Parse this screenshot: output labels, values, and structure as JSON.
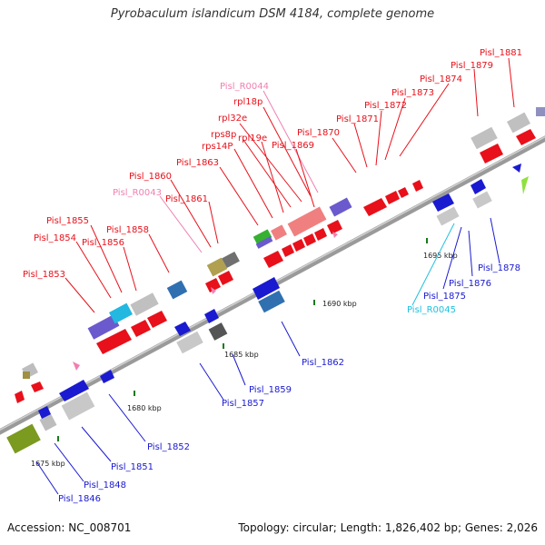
{
  "title": "Pyrobaculum islandicum DSM 4184, complete genome",
  "footer": {
    "accession": "Accession: NC_008701",
    "summary": "Topology: circular; Length: 1,826,402 bp; Genes: 2,026"
  },
  "colors": {
    "top_label": "#e8101a",
    "bottom_label": "#1a1ad0",
    "rna_label": "#f080b0",
    "rrna_label": "#20c0e0",
    "backbone": "#9a9a9a"
  },
  "ticks": [
    "1675 kbp",
    "1680 kbp",
    "1685 kbp",
    "1690 kbp",
    "1695 kbp"
  ],
  "labels": [
    "Pisl_1881",
    "Pisl_1879",
    "Pisl_1874",
    "Pisl_1873",
    "Pisl_1872",
    "Pisl_1871",
    "Pisl_1870",
    "Pisl_R0044",
    "rpl18p",
    "rpl32e",
    "rps8p",
    "rpl19e",
    "rps14P",
    "Pisl_1869",
    "Pisl_1863",
    "Pisl_1860",
    "Pisl_R0043",
    "Pisl_1861",
    "Pisl_1855",
    "Pisl_1854",
    "Pisl_1856",
    "Pisl_1858",
    "Pisl_1853",
    "Pisl_1862",
    "Pisl_1859",
    "Pisl_1857",
    "Pisl_1852",
    "Pisl_1851",
    "Pisl_1848",
    "Pisl_1846",
    "Pisl_1878",
    "Pisl_1876",
    "Pisl_1875",
    "Pisl_R0045"
  ]
}
